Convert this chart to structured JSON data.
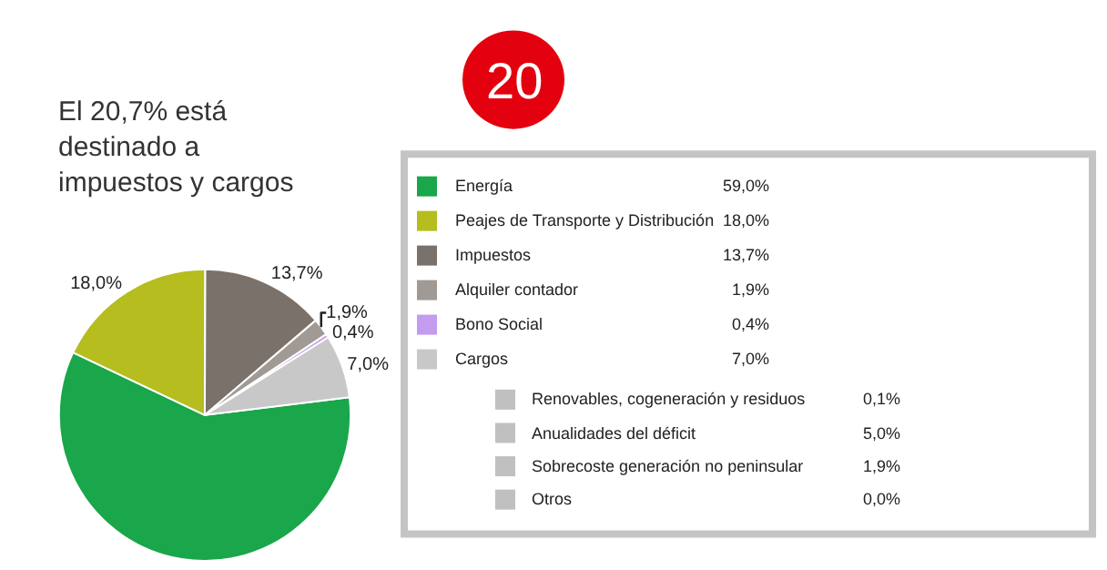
{
  "chart_data": [
    {
      "type": "pie",
      "title": "El 20,7% está destinado a impuestos y cargos",
      "annotations": [
        "20"
      ],
      "categories": [
        "Energía",
        "Peajes de Transporte y Distribución",
        "Impuestos",
        "Alquiler contador",
        "Bono Social",
        "Cargos"
      ],
      "values": [
        59.0,
        18.0,
        13.7,
        1.9,
        0.4,
        7.0
      ],
      "colors": [
        "#1aa64a",
        "#b5bd1f",
        "#7a716b",
        "#a19a94",
        "#c39bef",
        "#c8c8c8"
      ],
      "value_labels": [
        null,
        "18,0%",
        "13,7%",
        "1,9%",
        "0,4%",
        "7,0%"
      ],
      "legend": "right"
    },
    {
      "type": "other",
      "value_labels": [
        "59,0%",
        "18,0%",
        "13,7%",
        "1,9%",
        "0,4%",
        "7,0%"
      ]
    },
    {
      "type": "other",
      "categories": [
        "Renovables, cogeneración y residuos",
        "Anualidades del déficit",
        "Sobrecoste generación no peninsular",
        "Otros"
      ],
      "colors": [
        "#c0c0c0",
        "#c0c0c0",
        "#c0c0c0",
        "#c0c0c0"
      ],
      "value_labels": [
        "0,1%",
        "5,0%",
        "1,9%",
        "0,0%"
      ]
    }
  ]
}
